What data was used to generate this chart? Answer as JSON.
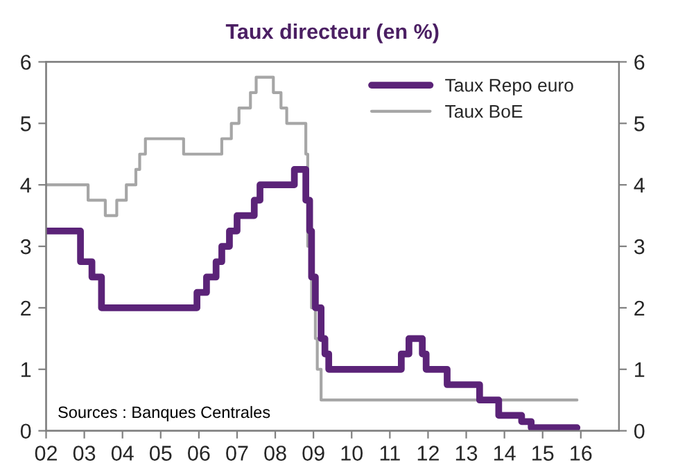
{
  "chart_data": {
    "type": "step",
    "title": "Taux directeur (en %)",
    "series": [
      {
        "name": "Taux Repo euro",
        "color": "#5b2378",
        "x": [
          2002.0,
          2002.9,
          2003.2,
          2003.45,
          2005.95,
          2006.2,
          2006.45,
          2006.6,
          2006.8,
          2007.0,
          2007.45,
          2007.6,
          2008.5,
          2008.8,
          2008.9,
          2008.95,
          2009.05,
          2009.2,
          2009.3,
          2009.4,
          2011.3,
          2011.5,
          2011.85,
          2011.95,
          2012.5,
          2013.35,
          2013.85,
          2014.45,
          2014.7,
          2015.9
        ],
        "values": [
          3.25,
          2.75,
          2.5,
          2.0,
          2.25,
          2.5,
          2.75,
          3.0,
          3.25,
          3.5,
          3.75,
          4.0,
          4.25,
          3.75,
          3.25,
          2.5,
          2.0,
          1.5,
          1.25,
          1.0,
          1.25,
          1.5,
          1.25,
          1.0,
          0.75,
          0.5,
          0.25,
          0.15,
          0.05,
          0.05
        ]
      },
      {
        "name": "Taux BoE",
        "color": "#a6a6a6",
        "x": [
          2002.0,
          2003.1,
          2003.55,
          2003.85,
          2004.1,
          2004.35,
          2004.45,
          2004.6,
          2005.6,
          2006.6,
          2006.85,
          2007.05,
          2007.35,
          2007.5,
          2007.95,
          2008.15,
          2008.3,
          2008.8,
          2008.85,
          2008.95,
          2009.05,
          2009.1,
          2009.2,
          2015.9
        ],
        "values": [
          4.0,
          3.75,
          3.5,
          3.75,
          4.0,
          4.25,
          4.5,
          4.75,
          4.5,
          4.75,
          5.0,
          5.25,
          5.5,
          5.75,
          5.5,
          5.25,
          5.0,
          4.5,
          3.0,
          2.0,
          1.5,
          1.0,
          0.5,
          0.5
        ]
      }
    ],
    "xlim": [
      2002,
      2017
    ],
    "xticks": [
      {
        "value": 2002,
        "label": "02"
      },
      {
        "value": 2003,
        "label": "03"
      },
      {
        "value": 2004,
        "label": "04"
      },
      {
        "value": 2005,
        "label": "05"
      },
      {
        "value": 2006,
        "label": "06"
      },
      {
        "value": 2007,
        "label": "07"
      },
      {
        "value": 2008,
        "label": "08"
      },
      {
        "value": 2009,
        "label": "09"
      },
      {
        "value": 2010,
        "label": "10"
      },
      {
        "value": 2011,
        "label": "11"
      },
      {
        "value": 2012,
        "label": "12"
      },
      {
        "value": 2013,
        "label": "13"
      },
      {
        "value": 2014,
        "label": "14"
      },
      {
        "value": 2015,
        "label": "15"
      },
      {
        "value": 2016,
        "label": "16"
      }
    ],
    "ylim": [
      0,
      6
    ],
    "yticks": [
      0,
      1,
      2,
      3,
      4,
      5,
      6
    ],
    "y2lim": [
      0,
      6
    ],
    "y2ticks": [
      0,
      1,
      2,
      3,
      4,
      5,
      6
    ],
    "annotations": [
      "Sources : Banques Centrales"
    ],
    "legend": "top right",
    "grid": false
  }
}
